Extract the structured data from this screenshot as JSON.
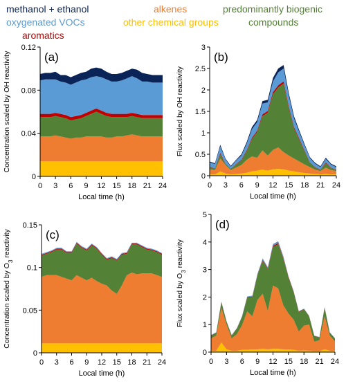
{
  "legend": {
    "methanol_ethanol": "methanol + ethanol",
    "alkenes": "alkenes",
    "biogenic_line1": "predominantly biogenic",
    "oxygenated": "oxygenated VOCs",
    "other": "other chemical groups",
    "biogenic_line2": "compounds",
    "aromatics": "aromatics"
  },
  "colors": {
    "methanol_ethanol": "#0b2457",
    "alkenes": "#ee7d31",
    "biogenic": "#538135",
    "oxygenated": "#5b9bd5",
    "other": "#ffc000",
    "aromatics": "#c00000"
  },
  "chart_data": [
    {
      "type": "area",
      "panel_label": "(a)",
      "xlabel": "Local time (h)",
      "ylabel": "Concentration scaled by OH reactivity",
      "x_ticks": [
        "0",
        "3",
        "6",
        "9",
        "12",
        "15",
        "18",
        "21",
        "24"
      ],
      "y_ticks": [
        "0",
        "0.04",
        "0.08",
        "0.12"
      ],
      "xlim": [
        0,
        24
      ],
      "ylim": [
        0,
        0.12
      ],
      "x": [
        0,
        1,
        2,
        3,
        4,
        5,
        6,
        7,
        8,
        9,
        10,
        11,
        12,
        13,
        14,
        15,
        16,
        17,
        18,
        19,
        20,
        21,
        22,
        23,
        24
      ],
      "series": [
        {
          "name": "other chemical groups",
          "color_key": "other",
          "values": [
            0.014,
            0.014,
            0.014,
            0.014,
            0.014,
            0.014,
            0.014,
            0.014,
            0.014,
            0.014,
            0.014,
            0.014,
            0.014,
            0.014,
            0.014,
            0.014,
            0.014,
            0.014,
            0.014,
            0.014,
            0.014,
            0.014,
            0.014,
            0.014,
            0.014
          ]
        },
        {
          "name": "alkenes",
          "color_key": "alkenes",
          "values": [
            0.023,
            0.023,
            0.023,
            0.024,
            0.023,
            0.022,
            0.021,
            0.022,
            0.022,
            0.023,
            0.023,
            0.023,
            0.023,
            0.022,
            0.022,
            0.023,
            0.023,
            0.024,
            0.025,
            0.024,
            0.023,
            0.023,
            0.023,
            0.023,
            0.023
          ]
        },
        {
          "name": "predominantly biogenic compounds",
          "color_key": "biogenic",
          "values": [
            0.018,
            0.018,
            0.018,
            0.018,
            0.018,
            0.018,
            0.017,
            0.017,
            0.018,
            0.019,
            0.021,
            0.023,
            0.021,
            0.02,
            0.019,
            0.018,
            0.018,
            0.017,
            0.017,
            0.017,
            0.017,
            0.017,
            0.017,
            0.017,
            0.017
          ]
        },
        {
          "name": "aromatics",
          "color_key": "aromatics",
          "values": [
            0.003,
            0.003,
            0.003,
            0.003,
            0.003,
            0.003,
            0.003,
            0.003,
            0.003,
            0.003,
            0.003,
            0.003,
            0.003,
            0.003,
            0.003,
            0.003,
            0.003,
            0.003,
            0.003,
            0.003,
            0.003,
            0.003,
            0.003,
            0.003,
            0.003
          ]
        },
        {
          "name": "oxygenated VOCs",
          "color_key": "oxygenated",
          "values": [
            0.031,
            0.032,
            0.032,
            0.031,
            0.03,
            0.03,
            0.03,
            0.031,
            0.032,
            0.031,
            0.031,
            0.03,
            0.031,
            0.031,
            0.03,
            0.03,
            0.031,
            0.033,
            0.034,
            0.033,
            0.031,
            0.031,
            0.03,
            0.03,
            0.03
          ]
        },
        {
          "name": "methanol + ethanol",
          "color_key": "methanol_ethanol",
          "values": [
            0.006,
            0.006,
            0.006,
            0.007,
            0.006,
            0.007,
            0.007,
            0.007,
            0.007,
            0.007,
            0.008,
            0.008,
            0.008,
            0.007,
            0.007,
            0.007,
            0.007,
            0.007,
            0.007,
            0.008,
            0.008,
            0.007,
            0.007,
            0.007,
            0.007
          ]
        }
      ]
    },
    {
      "type": "area",
      "panel_label": "(b)",
      "xlabel": "Local time (h)",
      "ylabel": "Flux scaled by OH reactivity",
      "x_ticks": [
        "0",
        "3",
        "6",
        "9",
        "12",
        "15",
        "18",
        "21",
        "24"
      ],
      "y_ticks": [
        "0",
        "0.5",
        "1",
        "1.5",
        "2",
        "2.5",
        "3"
      ],
      "xlim": [
        0,
        24
      ],
      "ylim": [
        0,
        3
      ],
      "x": [
        0,
        1,
        2,
        3,
        4,
        5,
        6,
        7,
        8,
        9,
        10,
        11,
        12,
        13,
        14,
        15,
        16,
        17,
        18,
        19,
        20,
        21,
        22,
        23,
        24
      ],
      "series": [
        {
          "name": "other chemical groups",
          "color_key": "other",
          "values": [
            0.03,
            0.03,
            0.1,
            0.05,
            0.03,
            0.04,
            0.05,
            0.07,
            0.1,
            0.12,
            0.14,
            0.12,
            0.15,
            0.16,
            0.15,
            0.12,
            0.1,
            0.08,
            0.06,
            0.05,
            0.04,
            0.03,
            0.04,
            0.03,
            0.03
          ]
        },
        {
          "name": "alkenes",
          "color_key": "alkenes",
          "values": [
            0.12,
            0.1,
            0.3,
            0.2,
            0.1,
            0.15,
            0.2,
            0.3,
            0.35,
            0.3,
            0.45,
            0.35,
            0.45,
            0.5,
            0.4,
            0.35,
            0.3,
            0.25,
            0.2,
            0.15,
            0.1,
            0.08,
            0.15,
            0.1,
            0.08
          ]
        },
        {
          "name": "predominantly biogenic compounds",
          "color_key": "biogenic",
          "values": [
            0.05,
            0.03,
            0.1,
            0.02,
            0.02,
            0.07,
            0.1,
            0.2,
            0.4,
            0.6,
            0.8,
            1.0,
            1.3,
            1.4,
            1.6,
            1.1,
            0.7,
            0.5,
            0.3,
            0.1,
            0.05,
            0.02,
            0.1,
            0.05,
            0.02
          ]
        },
        {
          "name": "aromatics",
          "color_key": "aromatics",
          "values": [
            0.01,
            0.01,
            0.03,
            0.01,
            0.01,
            0.01,
            0.02,
            0.02,
            0.03,
            0.03,
            0.04,
            0.04,
            0.05,
            0.05,
            0.05,
            0.04,
            0.03,
            0.03,
            0.02,
            0.01,
            0.01,
            0.01,
            0.02,
            0.01,
            0.01
          ]
        },
        {
          "name": "oxygenated VOCs",
          "color_key": "oxygenated",
          "values": [
            0.1,
            0.1,
            0.15,
            0.1,
            0.05,
            0.08,
            0.1,
            0.15,
            0.2,
            0.2,
            0.25,
            0.2,
            0.25,
            0.3,
            0.3,
            0.25,
            0.2,
            0.15,
            0.12,
            0.1,
            0.08,
            0.06,
            0.08,
            0.07,
            0.06
          ]
        },
        {
          "name": "methanol + ethanol",
          "color_key": "methanol_ethanol",
          "values": [
            0.02,
            0.02,
            0.04,
            0.02,
            0.02,
            0.02,
            0.03,
            0.04,
            0.05,
            0.05,
            0.06,
            0.06,
            0.08,
            0.09,
            0.08,
            0.06,
            0.05,
            0.04,
            0.03,
            0.02,
            0.02,
            0.02,
            0.03,
            0.02,
            0.02
          ]
        }
      ]
    },
    {
      "type": "area",
      "panel_label": "(c)",
      "xlabel": "Local time (h)",
      "ylabel": "Concentration scaled by O",
      "ylabel_sub": "3",
      "ylabel_end": " reactivity",
      "x_ticks": [
        "0",
        "3",
        "6",
        "9",
        "12",
        "15",
        "18",
        "21",
        "24"
      ],
      "y_ticks": [
        "0",
        "0.05",
        "0.1",
        "0.15"
      ],
      "xlim": [
        0,
        24
      ],
      "ylim": [
        0,
        0.15
      ],
      "x": [
        0,
        1,
        2,
        3,
        4,
        5,
        6,
        7,
        8,
        9,
        10,
        11,
        12,
        13,
        14,
        15,
        16,
        17,
        18,
        19,
        20,
        21,
        22,
        23,
        24
      ],
      "series": [
        {
          "name": "other chemical groups",
          "color_key": "other",
          "values": [
            0.011,
            0.011,
            0.011,
            0.011,
            0.011,
            0.011,
            0.011,
            0.011,
            0.011,
            0.011,
            0.011,
            0.011,
            0.011,
            0.011,
            0.011,
            0.011,
            0.011,
            0.011,
            0.011,
            0.011,
            0.011,
            0.011,
            0.011,
            0.011,
            0.011
          ]
        },
        {
          "name": "alkenes",
          "color_key": "alkenes",
          "values": [
            0.078,
            0.08,
            0.08,
            0.08,
            0.078,
            0.076,
            0.074,
            0.08,
            0.077,
            0.074,
            0.077,
            0.073,
            0.07,
            0.068,
            0.062,
            0.058,
            0.068,
            0.08,
            0.083,
            0.081,
            0.082,
            0.082,
            0.082,
            0.08,
            0.078
          ]
        },
        {
          "name": "predominantly biogenic compounds",
          "color_key": "biogenic",
          "values": [
            0.025,
            0.025,
            0.027,
            0.03,
            0.032,
            0.03,
            0.032,
            0.037,
            0.035,
            0.035,
            0.038,
            0.038,
            0.034,
            0.03,
            0.038,
            0.039,
            0.036,
            0.025,
            0.033,
            0.035,
            0.031,
            0.028,
            0.027,
            0.027,
            0.026
          ]
        },
        {
          "name": "aromatics",
          "color_key": "aromatics",
          "values": [
            0.001,
            0.001,
            0.001,
            0.001,
            0.001,
            0.001,
            0.001,
            0.001,
            0.001,
            0.001,
            0.001,
            0.001,
            0.001,
            0.001,
            0.001,
            0.001,
            0.001,
            0.001,
            0.001,
            0.001,
            0.001,
            0.001,
            0.001,
            0.001,
            0.001
          ]
        },
        {
          "name": "oxygenated VOCs",
          "color_key": "oxygenated",
          "values": [
            0.001,
            0.001,
            0.001,
            0.001,
            0.001,
            0.001,
            0.001,
            0.001,
            0.001,
            0.001,
            0.001,
            0.001,
            0.001,
            0.001,
            0.001,
            0.001,
            0.001,
            0.001,
            0.001,
            0.001,
            0.001,
            0.001,
            0.001,
            0.001,
            0.001
          ]
        },
        {
          "name": "methanol + ethanol",
          "color_key": "methanol_ethanol",
          "values": [
            0.0,
            0.0,
            0.0,
            0.0,
            0.0,
            0.0,
            0.0,
            0.0,
            0.0,
            0.0,
            0.0,
            0.0,
            0.0,
            0.0,
            0.0,
            0.0,
            0.0,
            0.0,
            0.0,
            0.0,
            0.0,
            0.0,
            0.0,
            0.0,
            0.0
          ]
        }
      ]
    },
    {
      "type": "area",
      "panel_label": "(d)",
      "xlabel": "Local time (h)",
      "ylabel": "Flux scaled by O",
      "ylabel_sub": "3",
      "ylabel_end": " reactivity",
      "x_ticks": [
        "0",
        "3",
        "6",
        "9",
        "12",
        "15",
        "18",
        "21",
        "24"
      ],
      "y_ticks": [
        "0",
        "1",
        "2",
        "3",
        "4",
        "5"
      ],
      "xlim": [
        0,
        24
      ],
      "ylim": [
        0,
        5
      ],
      "x": [
        0,
        1,
        2,
        3,
        4,
        5,
        6,
        7,
        8,
        9,
        10,
        11,
        12,
        13,
        14,
        15,
        16,
        17,
        18,
        19,
        20,
        21,
        22,
        23,
        24
      ],
      "series": [
        {
          "name": "other chemical groups",
          "color_key": "other",
          "values": [
            0.05,
            0.05,
            0.35,
            0.1,
            0.05,
            0.05,
            0.08,
            0.08,
            0.1,
            0.1,
            0.12,
            0.1,
            0.12,
            0.12,
            0.1,
            0.1,
            0.08,
            0.05,
            0.06,
            0.05,
            0.03,
            0.03,
            0.1,
            0.05,
            0.04
          ]
        },
        {
          "name": "alkenes",
          "color_key": "alkenes",
          "values": [
            0.45,
            0.55,
            1.25,
            0.9,
            0.45,
            0.6,
            0.9,
            1.4,
            1.2,
            1.8,
            2.0,
            1.4,
            2.3,
            2.2,
            1.6,
            1.3,
            1.1,
            0.7,
            0.9,
            0.95,
            0.35,
            0.4,
            1.2,
            0.55,
            0.35
          ]
        },
        {
          "name": "predominantly biogenic compounds",
          "color_key": "biogenic",
          "values": [
            0.1,
            0.1,
            0.2,
            0.1,
            0.1,
            0.2,
            0.3,
            0.5,
            0.7,
            0.9,
            1.2,
            1.5,
            1.4,
            1.6,
            1.7,
            1.3,
            1.0,
            0.7,
            0.6,
            0.3,
            0.2,
            0.1,
            0.3,
            0.1,
            0.1
          ]
        },
        {
          "name": "aromatics",
          "color_key": "aromatics",
          "values": [
            0.01,
            0.01,
            0.02,
            0.01,
            0.01,
            0.01,
            0.01,
            0.02,
            0.02,
            0.02,
            0.03,
            0.03,
            0.04,
            0.04,
            0.03,
            0.03,
            0.02,
            0.02,
            0.01,
            0.01,
            0.01,
            0.01,
            0.02,
            0.01,
            0.01
          ]
        },
        {
          "name": "oxygenated VOCs",
          "color_key": "oxygenated",
          "values": [
            0.01,
            0.01,
            0.02,
            0.01,
            0.01,
            0.01,
            0.02,
            0.02,
            0.03,
            0.03,
            0.04,
            0.04,
            0.05,
            0.05,
            0.04,
            0.03,
            0.02,
            0.02,
            0.01,
            0.01,
            0.01,
            0.01,
            0.02,
            0.01,
            0.01
          ]
        },
        {
          "name": "methanol + ethanol",
          "color_key": "methanol_ethanol",
          "values": [
            0.0,
            0.0,
            0.0,
            0.0,
            0.0,
            0.0,
            0.0,
            0.0,
            0.0,
            0.0,
            0.01,
            0.01,
            0.01,
            0.01,
            0.01,
            0.0,
            0.0,
            0.0,
            0.0,
            0.0,
            0.0,
            0.0,
            0.0,
            0.0,
            0.0
          ]
        }
      ]
    }
  ]
}
